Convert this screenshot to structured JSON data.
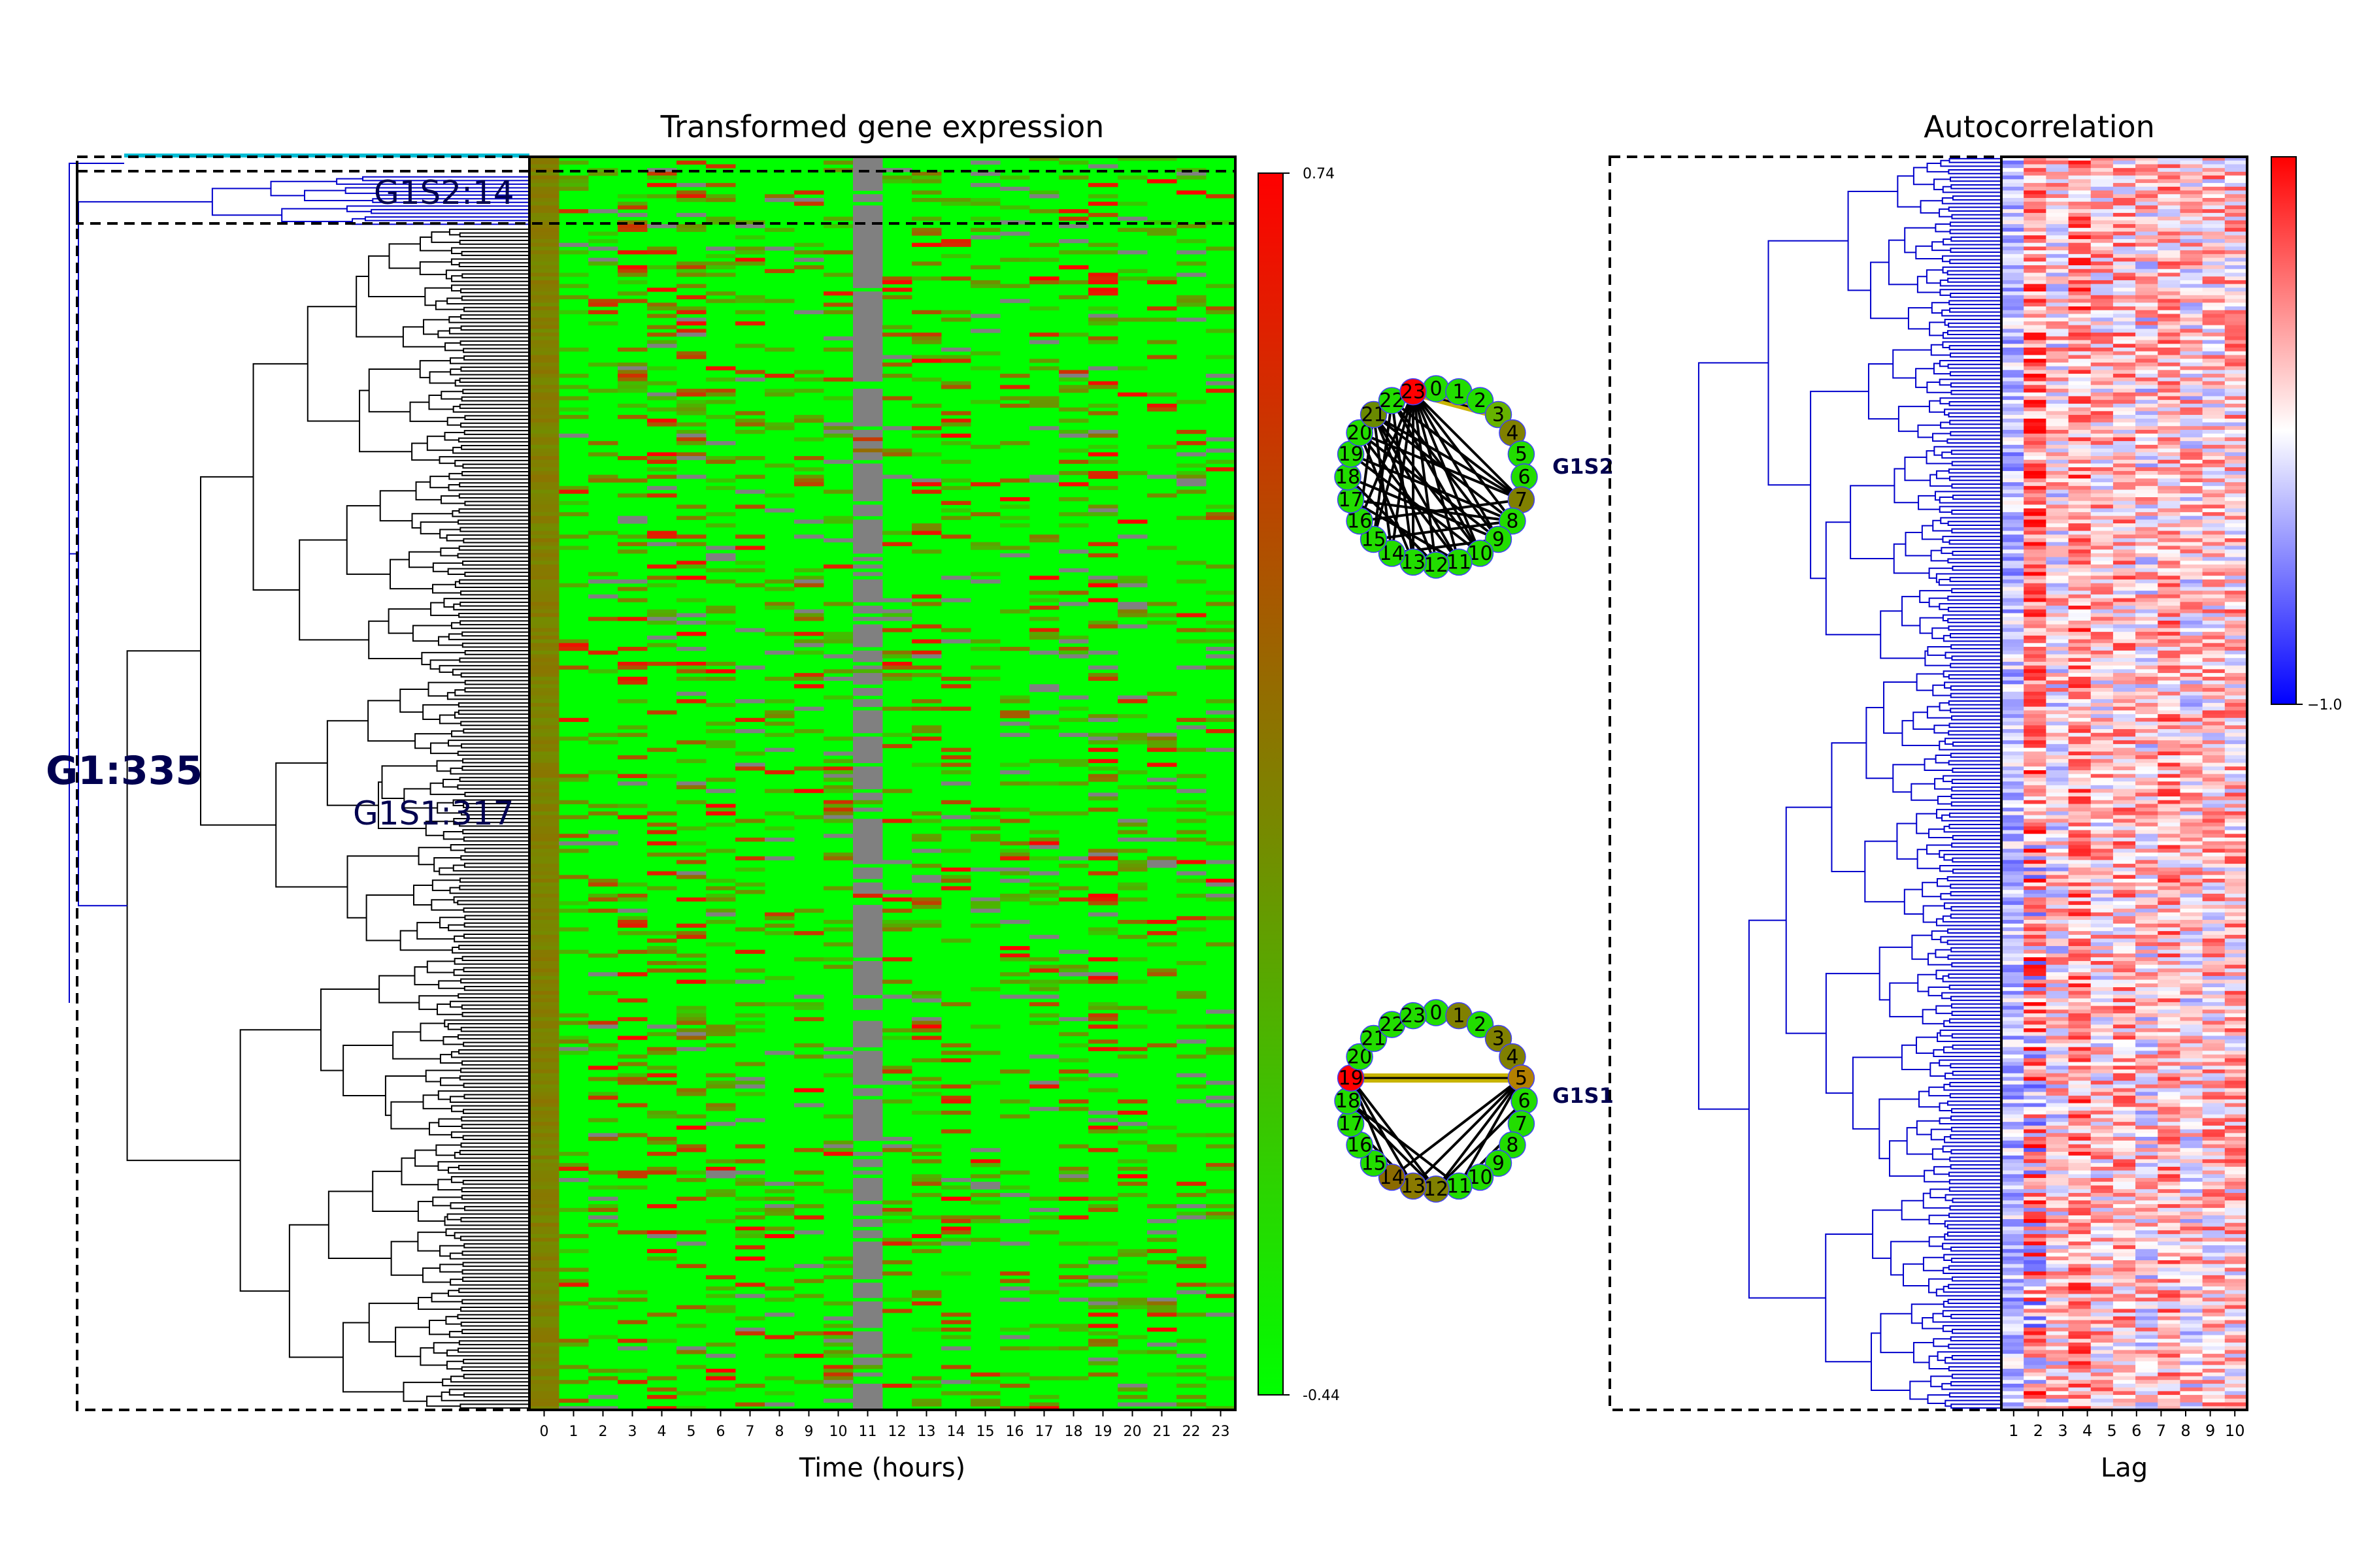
{
  "panels": {
    "expression_title": "Transformed gene expression",
    "autocorr_title": "Autocorrelation",
    "expression_xlabel": "Time (hours)",
    "autocorr_xlabel": "Lag"
  },
  "cluster_labels": {
    "g1": "G1:335",
    "g1s1": "G1S1:317",
    "g1s2": "G1S2:14"
  },
  "network_labels": {
    "top": "G1S2",
    "bottom": "G1S1"
  },
  "colors": {
    "heat_low": "#00ff00",
    "heat_mid": "#808000",
    "heat_high": "#ff0000",
    "heat_missing": "#808080",
    "acf_low": "#0000ff",
    "acf_high": "#ff0000",
    "dendro_black": "#000000",
    "dendro_blue": "#0000cc",
    "dendro_cyan": "#00bcd4",
    "cluster_label": "#000050",
    "network_edge": "#000000",
    "network_highlight_edge": "#c8b400",
    "network_ring": "#4040ff"
  },
  "chart_data": [
    {
      "type": "heatmap",
      "title": "Transformed gene expression",
      "xlabel": "Time (hours)",
      "x_ticks": [
        "0",
        "1",
        "2",
        "3",
        "4",
        "5",
        "6",
        "7",
        "8",
        "9",
        "10",
        "11",
        "12",
        "13",
        "14",
        "15",
        "16",
        "17",
        "18",
        "19",
        "20",
        "21",
        "22",
        "23"
      ],
      "n_rows": 335,
      "colorbar": {
        "max_label": "0.74",
        "min_label": "-0.44",
        "range": [
          -0.44,
          0.74
        ]
      },
      "clusters": [
        {
          "name": "G1",
          "count": 335
        },
        {
          "name": "G1S1",
          "count": 317
        },
        {
          "name": "G1S2",
          "count": 14
        }
      ],
      "notes": "Rows are genes clustered by dendrogram; column 11 is mostly missing (grey)."
    },
    {
      "type": "heatmap",
      "title": "Autocorrelation",
      "xlabel": "Lag",
      "x_ticks": [
        "1",
        "2",
        "3",
        "4",
        "5",
        "6",
        "7",
        "8",
        "9",
        "10"
      ],
      "n_rows": 335,
      "colorbar": {
        "min_label": "−1.0",
        "range": [
          -1.0,
          1.0
        ]
      }
    }
  ],
  "networks": [
    {
      "label": "G1S2",
      "nodes": [
        "0",
        "1",
        "2",
        "3",
        "4",
        "5",
        "6",
        "7",
        "8",
        "9",
        "10",
        "11",
        "12",
        "13",
        "14",
        "15",
        "16",
        "17",
        "18",
        "19",
        "20",
        "21",
        "22",
        "23"
      ],
      "node_colors": {
        "23": "#ff0000",
        "4": "#808000",
        "7": "#808000",
        "3": "#66b300",
        "21": "#6a8a00"
      },
      "edges": [
        [
          23,
          7
        ],
        [
          23,
          8
        ],
        [
          23,
          9
        ],
        [
          23,
          10
        ],
        [
          23,
          11
        ],
        [
          23,
          12
        ],
        [
          23,
          13
        ],
        [
          23,
          14
        ],
        [
          23,
          15
        ],
        [
          23,
          16
        ],
        [
          22,
          7
        ],
        [
          22,
          9
        ],
        [
          22,
          10
        ],
        [
          22,
          13
        ],
        [
          22,
          15
        ],
        [
          21,
          7
        ],
        [
          21,
          8
        ],
        [
          21,
          10
        ],
        [
          21,
          11
        ],
        [
          21,
          12
        ],
        [
          21,
          14
        ],
        [
          21,
          16
        ],
        [
          20,
          7
        ],
        [
          20,
          9
        ],
        [
          20,
          11
        ],
        [
          20,
          13
        ],
        [
          19,
          8
        ],
        [
          19,
          10
        ],
        [
          18,
          9
        ],
        [
          18,
          12
        ],
        [
          17,
          8
        ],
        [
          17,
          11
        ],
        [
          16,
          7
        ],
        [
          15,
          8
        ],
        [
          14,
          9
        ]
      ],
      "highlight_edges": [
        [
          23,
          3
        ]
      ]
    },
    {
      "label": "G1S1",
      "nodes": [
        "0",
        "1",
        "2",
        "3",
        "4",
        "5",
        "6",
        "7",
        "8",
        "9",
        "10",
        "11",
        "12",
        "13",
        "14",
        "15",
        "16",
        "17",
        "18",
        "19",
        "20",
        "21",
        "22",
        "23"
      ],
      "node_colors": {
        "19": "#ff0000",
        "5": "#b38000",
        "1": "#808000",
        "3": "#808000",
        "4": "#808000",
        "13": "#8a7a00",
        "14": "#8a6a00",
        "12": "#808000"
      },
      "edges": [
        [
          19,
          12
        ],
        [
          19,
          13
        ],
        [
          19,
          14
        ],
        [
          18,
          11
        ],
        [
          18,
          12
        ],
        [
          17,
          13
        ],
        [
          5,
          12
        ],
        [
          5,
          11
        ],
        [
          5,
          13
        ],
        [
          5,
          14
        ],
        [
          6,
          12
        ],
        [
          7,
          11
        ]
      ],
      "highlight_edges": [
        [
          19,
          5
        ]
      ]
    }
  ]
}
